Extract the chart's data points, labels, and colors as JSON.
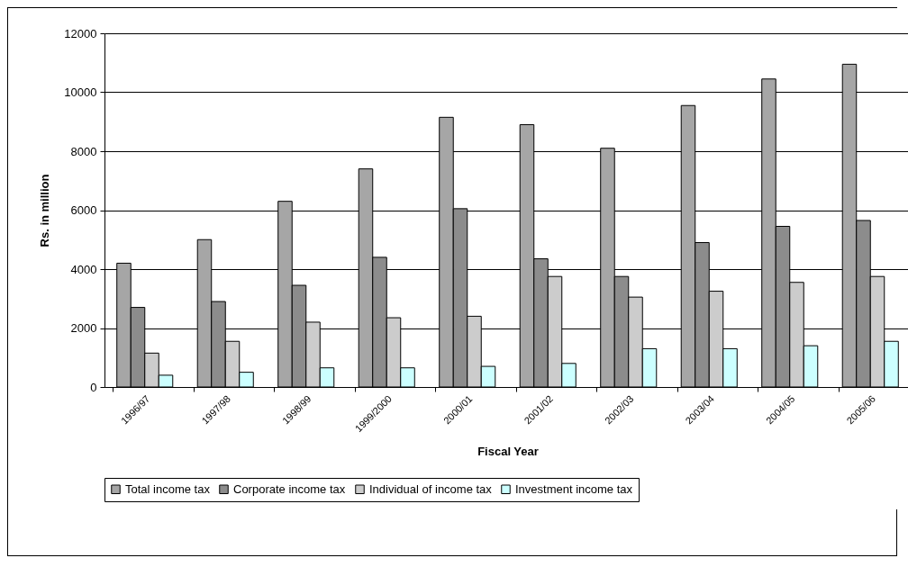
{
  "chart_data": {
    "type": "bar",
    "xlabel": "Fiscal Year",
    "ylabel": "Rs. in million",
    "categories": [
      "1996/97",
      "1997/98",
      "1998/99",
      "1999/2000",
      "2000/01",
      "2001/02",
      "2002/03",
      "2003/04",
      "2004/05",
      "2005/06"
    ],
    "series": [
      {
        "name": "Total income tax",
        "color": "#a6a6a6",
        "values": [
          4200,
          5000,
          6300,
          7400,
          9150,
          8900,
          8100,
          9550,
          10450,
          10950
        ]
      },
      {
        "name": "Corporate income tax",
        "color": "#8c8c8c",
        "values": [
          2700,
          2900,
          3450,
          4400,
          6050,
          4350,
          3750,
          4900,
          5450,
          5650
        ]
      },
      {
        "name": "Individual of income tax",
        "color": "#cccccc",
        "values": [
          1150,
          1550,
          2200,
          2350,
          2400,
          3750,
          3050,
          3250,
          3550,
          3750
        ]
      },
      {
        "name": "Investment income tax",
        "color": "#ccffff",
        "values": [
          400,
          500,
          650,
          650,
          700,
          800,
          1300,
          1300,
          1400,
          1550
        ]
      }
    ],
    "ylim": [
      0,
      12000
    ],
    "yticks": [
      0,
      2000,
      4000,
      6000,
      8000,
      10000,
      12000
    ],
    "grid": "y",
    "legend": "bottom"
  }
}
